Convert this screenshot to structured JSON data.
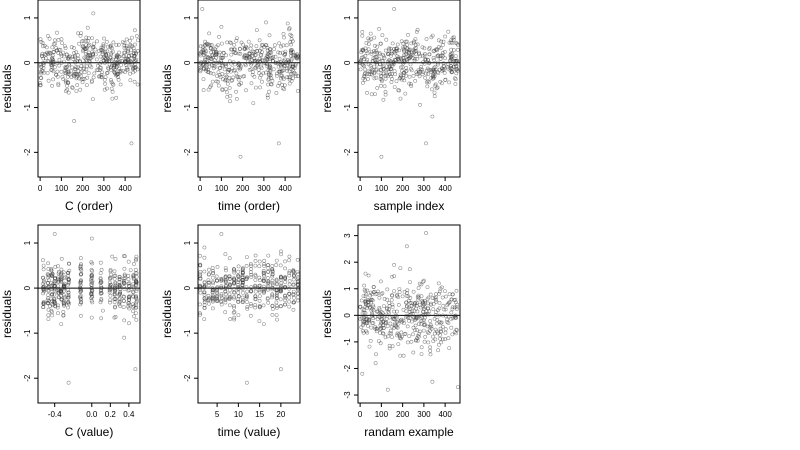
{
  "chart_data": [
    {
      "type": "scatter",
      "xlabel": "C (order)",
      "ylabel": "residuals",
      "xticks": [
        0,
        100,
        200,
        300,
        400
      ],
      "yticks": [
        -2,
        -1,
        0,
        1
      ],
      "xlim": [
        -10,
        470
      ],
      "ylim": [
        -2.55,
        1.4
      ],
      "hline": 0,
      "pattern": "order",
      "x": [
        10,
        40,
        70,
        100,
        130,
        160,
        190,
        220,
        250,
        280,
        310,
        340,
        370,
        400,
        430,
        460
      ],
      "y": [
        0.2,
        -0.4,
        0.5,
        -0.2,
        0.1,
        -1.3,
        0.6,
        -0.5,
        1.1,
        -0.3,
        0.2,
        -0.8,
        0.4,
        0.0,
        -1.8,
        0.5
      ]
    },
    {
      "type": "scatter",
      "xlabel": "time (order)",
      "ylabel": "residuals",
      "xticks": [
        0,
        100,
        200,
        300,
        400
      ],
      "yticks": [
        -2,
        -1,
        0,
        1
      ],
      "xlim": [
        -10,
        470
      ],
      "ylim": [
        -2.55,
        1.4
      ],
      "hline": 0,
      "pattern": "order",
      "x": [
        10,
        40,
        70,
        100,
        130,
        160,
        190,
        220,
        250,
        280,
        310,
        340,
        370,
        400,
        430,
        460
      ],
      "y": [
        1.2,
        -0.6,
        0.3,
        0.8,
        -0.2,
        0.4,
        -2.1,
        0.1,
        -0.9,
        0.5,
        0.9,
        -0.4,
        -1.8,
        0.2,
        0.6,
        -0.3
      ]
    },
    {
      "type": "scatter",
      "xlabel": "sample index",
      "ylabel": "residuals",
      "xticks": [
        0,
        100,
        200,
        300,
        400
      ],
      "yticks": [
        -2,
        -1,
        0,
        1
      ],
      "xlim": [
        -10,
        470
      ],
      "ylim": [
        -2.55,
        1.4
      ],
      "hline": 0,
      "pattern": "index",
      "x": [
        10,
        40,
        70,
        100,
        130,
        160,
        190,
        220,
        250,
        280,
        310,
        340,
        370,
        400,
        430,
        460
      ],
      "y": [
        0.6,
        0.3,
        -0.7,
        -2.1,
        0.2,
        1.2,
        -0.8,
        0.4,
        0.1,
        -0.3,
        -1.8,
        -1.2,
        0.5,
        0.1,
        -0.2,
        0.4
      ]
    },
    {
      "type": "scatter",
      "xlabel": "C (value)",
      "ylabel": "residuals",
      "xticks": [
        -0.4,
        0.0,
        0.2,
        0.4
      ],
      "xticklabels": [
        "-0.4",
        "0.0",
        "0.2",
        "0.4"
      ],
      "yticks": [
        -2,
        -1,
        0,
        1
      ],
      "xlim": [
        -0.58,
        0.52
      ],
      "ylim": [
        -2.55,
        1.4
      ],
      "hline": 0,
      "pattern": "cvalue",
      "x": [
        -0.52,
        -0.45,
        -0.4,
        -0.33,
        -0.25,
        -0.12,
        0.0,
        0.12,
        0.22,
        0.35,
        0.42,
        0.47
      ],
      "y": [
        0.5,
        -0.4,
        1.2,
        -0.8,
        -2.1,
        0.3,
        1.1,
        -0.5,
        0.7,
        -1.1,
        0.4,
        -1.8
      ]
    },
    {
      "type": "scatter",
      "xlabel": "time (value)",
      "ylabel": "residuals",
      "xticks": [
        5,
        10,
        15,
        20
      ],
      "yticks": [
        -2,
        -1,
        0,
        1
      ],
      "xlim": [
        0.5,
        24.5
      ],
      "ylim": [
        -2.55,
        1.4
      ],
      "hline": 0,
      "pattern": "tvalue",
      "x": [
        2,
        4,
        6,
        8,
        10,
        12,
        14,
        16,
        18,
        20,
        22,
        24
      ],
      "y": [
        0.9,
        -0.3,
        1.2,
        0.2,
        -0.6,
        -2.1,
        0.5,
        -0.8,
        0.3,
        -1.8,
        0.7,
        0.1
      ]
    },
    {
      "type": "scatter",
      "xlabel": "randam example",
      "ylabel": "residuals",
      "xticks": [
        0,
        100,
        200,
        300,
        400
      ],
      "yticks": [
        -3,
        -2,
        -1,
        0,
        1,
        2,
        3
      ],
      "xlim": [
        -10,
        470
      ],
      "ylim": [
        -3.3,
        3.4
      ],
      "hline": 0,
      "pattern": "random",
      "x": [
        10,
        40,
        70,
        100,
        130,
        160,
        190,
        220,
        250,
        280,
        310,
        340,
        370,
        400,
        430,
        460
      ],
      "y": [
        -2.2,
        1.5,
        -0.5,
        0.8,
        -2.8,
        1.9,
        -0.2,
        2.6,
        -1.4,
        0.4,
        3.1,
        -2.5,
        1.2,
        -0.9,
        0.6,
        -2.7
      ]
    }
  ]
}
